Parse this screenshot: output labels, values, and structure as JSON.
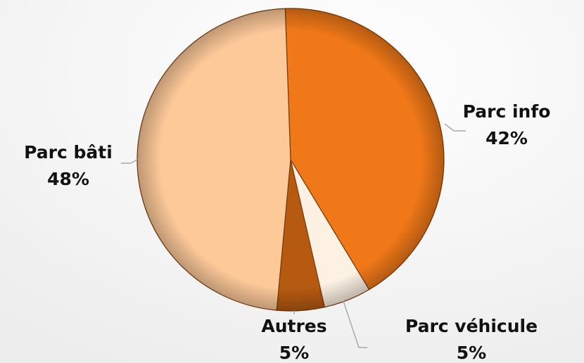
{
  "chart_data": {
    "type": "pie",
    "categories": [
      "Parc info",
      "Parc véhicule",
      "Autres",
      "Parc bâti"
    ],
    "values": [
      42,
      5,
      5,
      48
    ],
    "value_labels": [
      "42%",
      "5%",
      "5%",
      "48%"
    ],
    "colors": [
      "#f07818",
      "#fdf1e3",
      "#b65a12",
      "#fdc999"
    ]
  }
}
